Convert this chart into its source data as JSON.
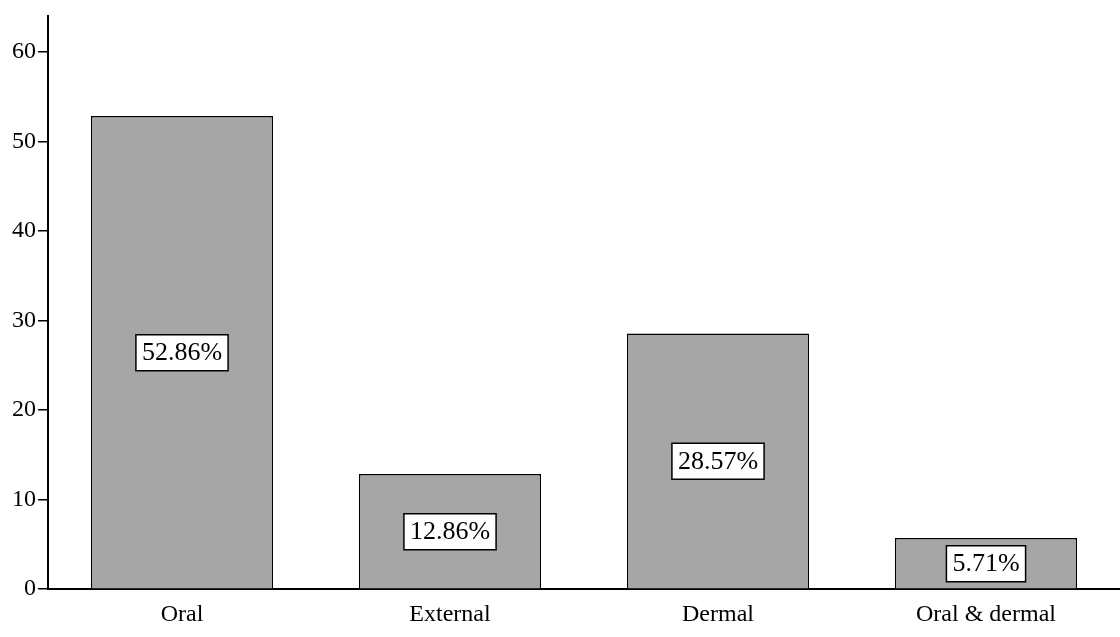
{
  "chart_data": {
    "type": "bar",
    "categories": [
      "Oral",
      "External",
      "Dermal",
      "Oral & dermal"
    ],
    "values": [
      52.86,
      12.86,
      28.57,
      5.71
    ],
    "value_labels": [
      "52.86%",
      "12.86%",
      "28.57%",
      "5.71%"
    ],
    "color": "#a6a6a6",
    "ylim": [
      0,
      64
    ],
    "yticks": [
      0,
      10,
      20,
      30,
      40,
      50,
      60
    ],
    "grid": false,
    "legend": false
  }
}
